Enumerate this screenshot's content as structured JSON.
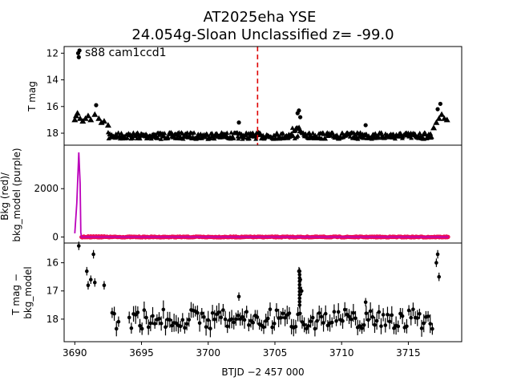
{
  "figure": {
    "title_line1": "AT2025eha  YSE",
    "title_line2": "24.054g-Sloan Unclassified z= -99.0"
  },
  "chart_data": [
    {
      "type": "scatter",
      "panel": "top",
      "ylabel": "T mag",
      "ylim": [
        18.9,
        11.5
      ],
      "inverted_y": true,
      "yticks": [
        "12",
        "14",
        "16",
        "18"
      ],
      "annotation": "s88 cam1ccd1",
      "reference_line_x": 3703.7,
      "reference_line_color": "#e00000",
      "series": [
        {
          "marker": "triangle",
          "color": "#000000",
          "points": [
            [
              3690.0,
              17.0
            ],
            [
              3690.1,
              16.7
            ],
            [
              3690.2,
              16.5
            ],
            [
              3690.4,
              16.9
            ],
            [
              3690.6,
              17.1
            ],
            [
              3690.8,
              16.9
            ],
            [
              3691.0,
              16.7
            ],
            [
              3691.2,
              17.0
            ],
            [
              3691.5,
              16.6
            ],
            [
              3691.8,
              16.9
            ],
            [
              3692.0,
              17.2
            ],
            [
              3692.2,
              17.1
            ],
            [
              3692.5,
              17.4
            ],
            [
              3716.9,
              17.6
            ],
            [
              3717.1,
              17.2
            ],
            [
              3717.3,
              16.9
            ],
            [
              3717.5,
              16.6
            ],
            [
              3717.7,
              16.9
            ],
            [
              3717.9,
              17.0
            ]
          ]
        },
        {
          "marker": "dot",
          "color": "#000000",
          "points": [
            [
              3690.25,
              12.0
            ],
            [
              3690.3,
              12.3
            ],
            [
              3690.35,
              11.8
            ],
            [
              3691.6,
              15.9
            ],
            [
              3702.3,
              17.2
            ],
            [
              3706.7,
              16.5
            ],
            [
              3706.8,
              16.3
            ],
            [
              3706.9,
              16.8
            ],
            [
              3711.8,
              17.4
            ],
            [
              3717.2,
              16.2
            ],
            [
              3717.4,
              15.8
            ]
          ]
        }
      ],
      "baseline": {
        "x_from": 3692.5,
        "x_to": 3716.8,
        "mag_center": 18.2,
        "mag_spread": 0.25
      }
    },
    {
      "type": "line",
      "panel": "middle",
      "ylabel": "Bkg (red)/\nbkg_model (purple)",
      "ylim": [
        -250,
        3800
      ],
      "yticks": [
        "0",
        "2000"
      ],
      "series": [
        {
          "name": "bkg_model",
          "color": "#bb00bb",
          "x": [
            3690.0,
            3690.15,
            3690.3,
            3690.4,
            3690.45,
            3690.5,
            3690.6,
            3718.0
          ],
          "y": [
            150,
            1400,
            3500,
            2200,
            200,
            0,
            0,
            0
          ]
        },
        {
          "name": "bkg",
          "color": "#ee1155",
          "x_from": 3690.5,
          "x_to": 3718.0,
          "value": 0
        }
      ]
    },
    {
      "type": "scatter",
      "panel": "bottom",
      "xlabel": "BTJD −2 457 000",
      "ylabel": "T mag −\nbkg_model",
      "ylim": [
        18.8,
        15.3
      ],
      "inverted_y": true,
      "yticks": [
        "16",
        "17",
        "18"
      ],
      "xlim": [
        3689.2,
        3719.0
      ],
      "xticks": [
        "3690",
        "3695",
        "3700",
        "3705",
        "3710",
        "3715"
      ],
      "points": [
        [
          3690.3,
          15.4
        ],
        [
          3690.9,
          16.3
        ],
        [
          3691.0,
          16.8
        ],
        [
          3691.2,
          16.6
        ],
        [
          3691.4,
          15.7
        ],
        [
          3691.5,
          16.7
        ],
        [
          3692.2,
          16.8
        ],
        [
          3702.3,
          17.2
        ],
        [
          3706.8,
          16.3
        ],
        [
          3706.9,
          16.6
        ],
        [
          3707.0,
          17.0
        ],
        [
          3711.8,
          17.4
        ],
        [
          3717.1,
          16.0
        ],
        [
          3717.2,
          15.7
        ],
        [
          3717.3,
          16.5
        ]
      ],
      "noise_band": {
        "x_from": 3692.8,
        "x_to": 3716.8,
        "center": 18.0,
        "spread": 0.35
      }
    }
  ]
}
